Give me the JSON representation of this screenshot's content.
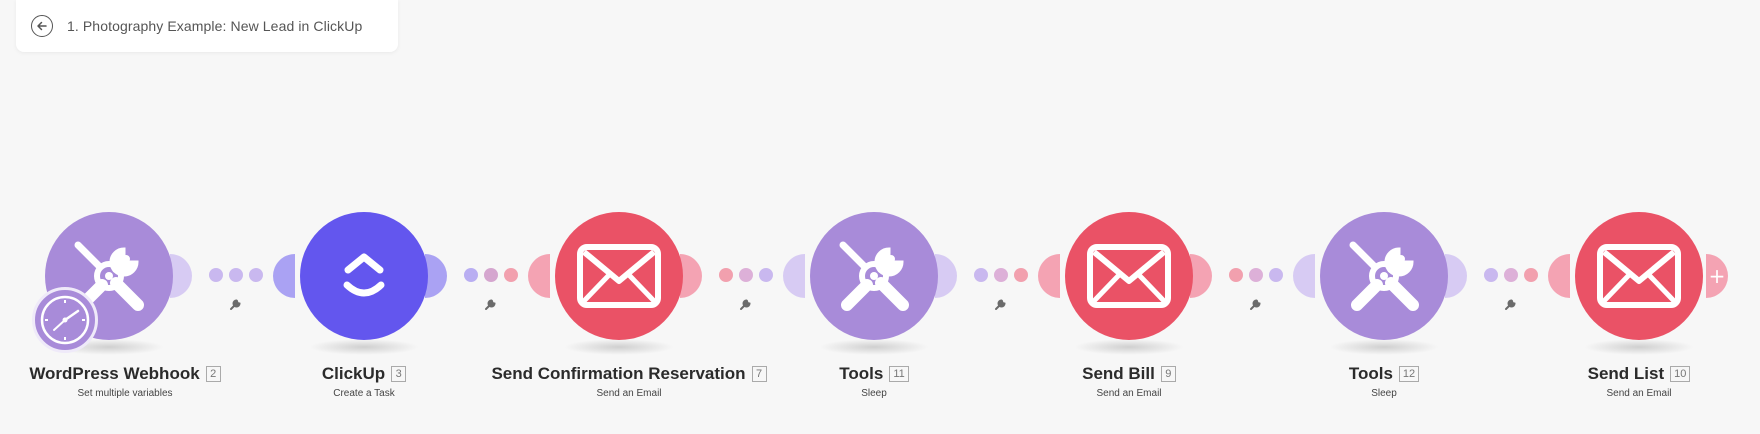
{
  "header": {
    "title": "1. Photography Example: New Lead in ClickUp",
    "back_icon": "arrow-left-circle-icon"
  },
  "colors": {
    "tools_purple": "#a88bd9",
    "clickup_indigo": "#6356ee",
    "email_red": "#ea5266",
    "dot_purple": "#c9b8ef",
    "dot_pink": "#f2a0ae",
    "dot_mauve": "#d5a6cf"
  },
  "modules": [
    {
      "name": "WordPress Webhook",
      "id": "2",
      "action": "Set multiple variables",
      "icon": "tools-icon"
    },
    {
      "name": "ClickUp",
      "id": "3",
      "action": "Create a Task",
      "icon": "clickup-icon"
    },
    {
      "name": "Send Confirmation Reservation",
      "id": "7",
      "action": "Send an Email",
      "icon": "envelope-icon"
    },
    {
      "name": "Tools",
      "id": "11",
      "action": "Sleep",
      "icon": "tools-icon"
    },
    {
      "name": "Send Bill",
      "id": "9",
      "action": "Send an Email",
      "icon": "envelope-icon"
    },
    {
      "name": "Tools",
      "id": "12",
      "action": "Sleep",
      "icon": "tools-icon"
    },
    {
      "name": "Send List",
      "id": "10",
      "action": "Send an Email",
      "icon": "envelope-icon"
    }
  ],
  "add_label": "+"
}
